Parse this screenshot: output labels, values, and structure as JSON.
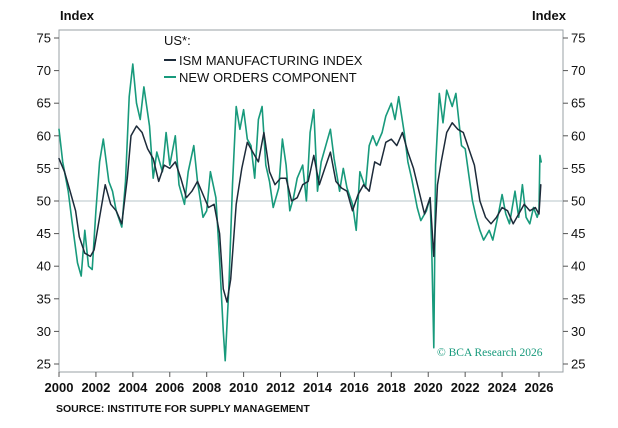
{
  "chart_data": {
    "type": "line",
    "title": "",
    "y_unit_left": "Index",
    "y_unit_right": "Index",
    "ylim": [
      24,
      77
    ],
    "y_ticks": [
      25,
      30,
      35,
      40,
      45,
      50,
      55,
      60,
      65,
      70,
      75
    ],
    "xlim": [
      2000,
      2026.7
    ],
    "x_ticks": [
      2000,
      2002,
      2004,
      2006,
      2008,
      2010,
      2012,
      2014,
      2016,
      2018,
      2020,
      2022,
      2024,
      2026
    ],
    "reference_line": 50,
    "grid": false,
    "legend": {
      "title": "US*:",
      "position": "top-center"
    },
    "series": [
      {
        "name": "ISM MANUFACTURING INDEX",
        "color": "#1d2b3a",
        "x": [
          2000.0,
          2000.3,
          2000.6,
          2000.9,
          2001.1,
          2001.4,
          2001.7,
          2001.9,
          2002.2,
          2002.5,
          2002.8,
          2003.1,
          2003.4,
          2003.7,
          2003.9,
          2004.2,
          2004.5,
          2004.8,
          2005.1,
          2005.4,
          2005.7,
          2006.0,
          2006.3,
          2006.6,
          2006.9,
          2007.2,
          2007.5,
          2007.8,
          2008.1,
          2008.4,
          2008.7,
          2008.9,
          2009.1,
          2009.3,
          2009.6,
          2009.9,
          2010.2,
          2010.5,
          2010.8,
          2011.1,
          2011.4,
          2011.7,
          2012.0,
          2012.3,
          2012.6,
          2012.9,
          2013.2,
          2013.5,
          2013.8,
          2014.1,
          2014.4,
          2014.7,
          2015.0,
          2015.3,
          2015.6,
          2015.9,
          2016.2,
          2016.5,
          2016.8,
          2017.1,
          2017.4,
          2017.7,
          2018.0,
          2018.3,
          2018.6,
          2018.9,
          2019.2,
          2019.5,
          2019.8,
          2020.1,
          2020.3,
          2020.5,
          2020.7,
          2021.0,
          2021.3,
          2021.6,
          2021.9,
          2022.2,
          2022.5,
          2022.8,
          2023.1,
          2023.4,
          2023.7,
          2024.0,
          2024.3,
          2024.6,
          2024.9,
          2025.2,
          2025.5,
          2025.8,
          2026.0,
          2026.1
        ],
        "values": [
          56.5,
          54.5,
          51.5,
          48.5,
          44.5,
          42.0,
          41.5,
          42.5,
          47.5,
          52.5,
          49.5,
          48.5,
          46.5,
          53.5,
          60.0,
          61.5,
          60.5,
          58.0,
          56.5,
          53.0,
          55.5,
          55.0,
          56.0,
          53.5,
          50.5,
          51.5,
          53.0,
          51.0,
          49.0,
          49.5,
          45.0,
          36.5,
          34.5,
          38.0,
          49.5,
          55.0,
          59.0,
          57.5,
          56.0,
          60.5,
          54.5,
          52.5,
          53.5,
          53.5,
          50.0,
          50.5,
          52.5,
          53.0,
          57.0,
          52.5,
          55.0,
          57.5,
          53.0,
          52.0,
          51.5,
          48.5,
          51.0,
          52.5,
          51.5,
          56.0,
          55.5,
          59.0,
          59.5,
          58.5,
          60.5,
          57.5,
          55.0,
          51.5,
          48.0,
          50.5,
          41.5,
          52.5,
          56.0,
          60.5,
          62.0,
          61.0,
          60.5,
          58.0,
          55.5,
          50.0,
          47.5,
          46.5,
          47.5,
          49.0,
          48.5,
          46.5,
          48.0,
          49.5,
          48.5,
          49.0,
          48.0,
          52.5
        ]
      },
      {
        "name": "NEW ORDERS COMPONENT",
        "color": "#189a7c",
        "x": [
          2000.0,
          2000.2,
          2000.5,
          2000.7,
          2001.0,
          2001.2,
          2001.4,
          2001.6,
          2001.8,
          2002.0,
          2002.2,
          2002.4,
          2002.7,
          2002.9,
          2003.1,
          2003.4,
          2003.6,
          2003.8,
          2004.0,
          2004.2,
          2004.4,
          2004.6,
          2004.9,
          2005.1,
          2005.3,
          2005.6,
          2005.8,
          2006.0,
          2006.3,
          2006.5,
          2006.8,
          2007.0,
          2007.3,
          2007.5,
          2007.8,
          2008.0,
          2008.2,
          2008.5,
          2008.7,
          2008.9,
          2009.0,
          2009.2,
          2009.4,
          2009.6,
          2009.8,
          2010.0,
          2010.2,
          2010.4,
          2010.6,
          2010.8,
          2011.0,
          2011.2,
          2011.4,
          2011.6,
          2011.9,
          2012.1,
          2012.3,
          2012.5,
          2012.7,
          2012.9,
          2013.2,
          2013.4,
          2013.6,
          2013.8,
          2014.0,
          2014.2,
          2014.5,
          2014.7,
          2014.9,
          2015.2,
          2015.4,
          2015.6,
          2015.9,
          2016.1,
          2016.3,
          2016.6,
          2016.8,
          2017.0,
          2017.2,
          2017.5,
          2017.7,
          2018.0,
          2018.2,
          2018.4,
          2018.7,
          2018.9,
          2019.1,
          2019.4,
          2019.6,
          2019.9,
          2020.1,
          2020.2,
          2020.3,
          2020.4,
          2020.6,
          2020.8,
          2021.0,
          2021.3,
          2021.5,
          2021.8,
          2022.0,
          2022.2,
          2022.4,
          2022.6,
          2022.8,
          2023.0,
          2023.3,
          2023.5,
          2023.8,
          2024.0,
          2024.2,
          2024.4,
          2024.7,
          2024.9,
          2025.1,
          2025.3,
          2025.5,
          2025.7,
          2025.9,
          2026.0,
          2026.05,
          2026.12
        ],
        "values": [
          61.0,
          56.0,
          51.5,
          47.0,
          40.5,
          38.5,
          45.5,
          40.0,
          39.5,
          48.5,
          56.0,
          59.5,
          53.0,
          51.5,
          48.5,
          46.0,
          53.0,
          66.0,
          71.0,
          65.0,
          62.5,
          67.5,
          61.5,
          53.5,
          57.5,
          54.5,
          60.5,
          55.5,
          60.0,
          52.5,
          49.5,
          54.5,
          58.5,
          53.0,
          47.5,
          48.5,
          54.5,
          50.5,
          41.0,
          30.0,
          25.5,
          36.5,
          52.5,
          64.5,
          61.0,
          64.0,
          59.5,
          58.5,
          53.5,
          62.5,
          64.5,
          55.5,
          53.0,
          49.0,
          52.0,
          59.5,
          55.5,
          48.5,
          50.5,
          53.5,
          55.5,
          50.0,
          60.5,
          64.0,
          51.5,
          56.0,
          59.0,
          61.0,
          56.5,
          51.5,
          55.0,
          52.0,
          49.5,
          45.5,
          54.5,
          52.0,
          58.5,
          60.0,
          58.5,
          60.5,
          63.0,
          65.0,
          62.5,
          66.0,
          60.5,
          56.0,
          53.5,
          49.0,
          47.0,
          48.5,
          50.5,
          41.5,
          27.5,
          55.5,
          66.5,
          62.0,
          67.0,
          64.5,
          66.5,
          58.5,
          58.0,
          54.0,
          50.0,
          47.5,
          45.5,
          44.0,
          45.5,
          44.0,
          48.0,
          51.0,
          48.0,
          46.5,
          51.5,
          47.5,
          52.5,
          47.5,
          46.5,
          49.0,
          47.5,
          48.5,
          57.0,
          56.0
        ]
      }
    ],
    "watermark": "© BCA Research 2026",
    "source": "SOURCE: INSTITUTE FOR SUPPLY MANAGEMENT"
  }
}
